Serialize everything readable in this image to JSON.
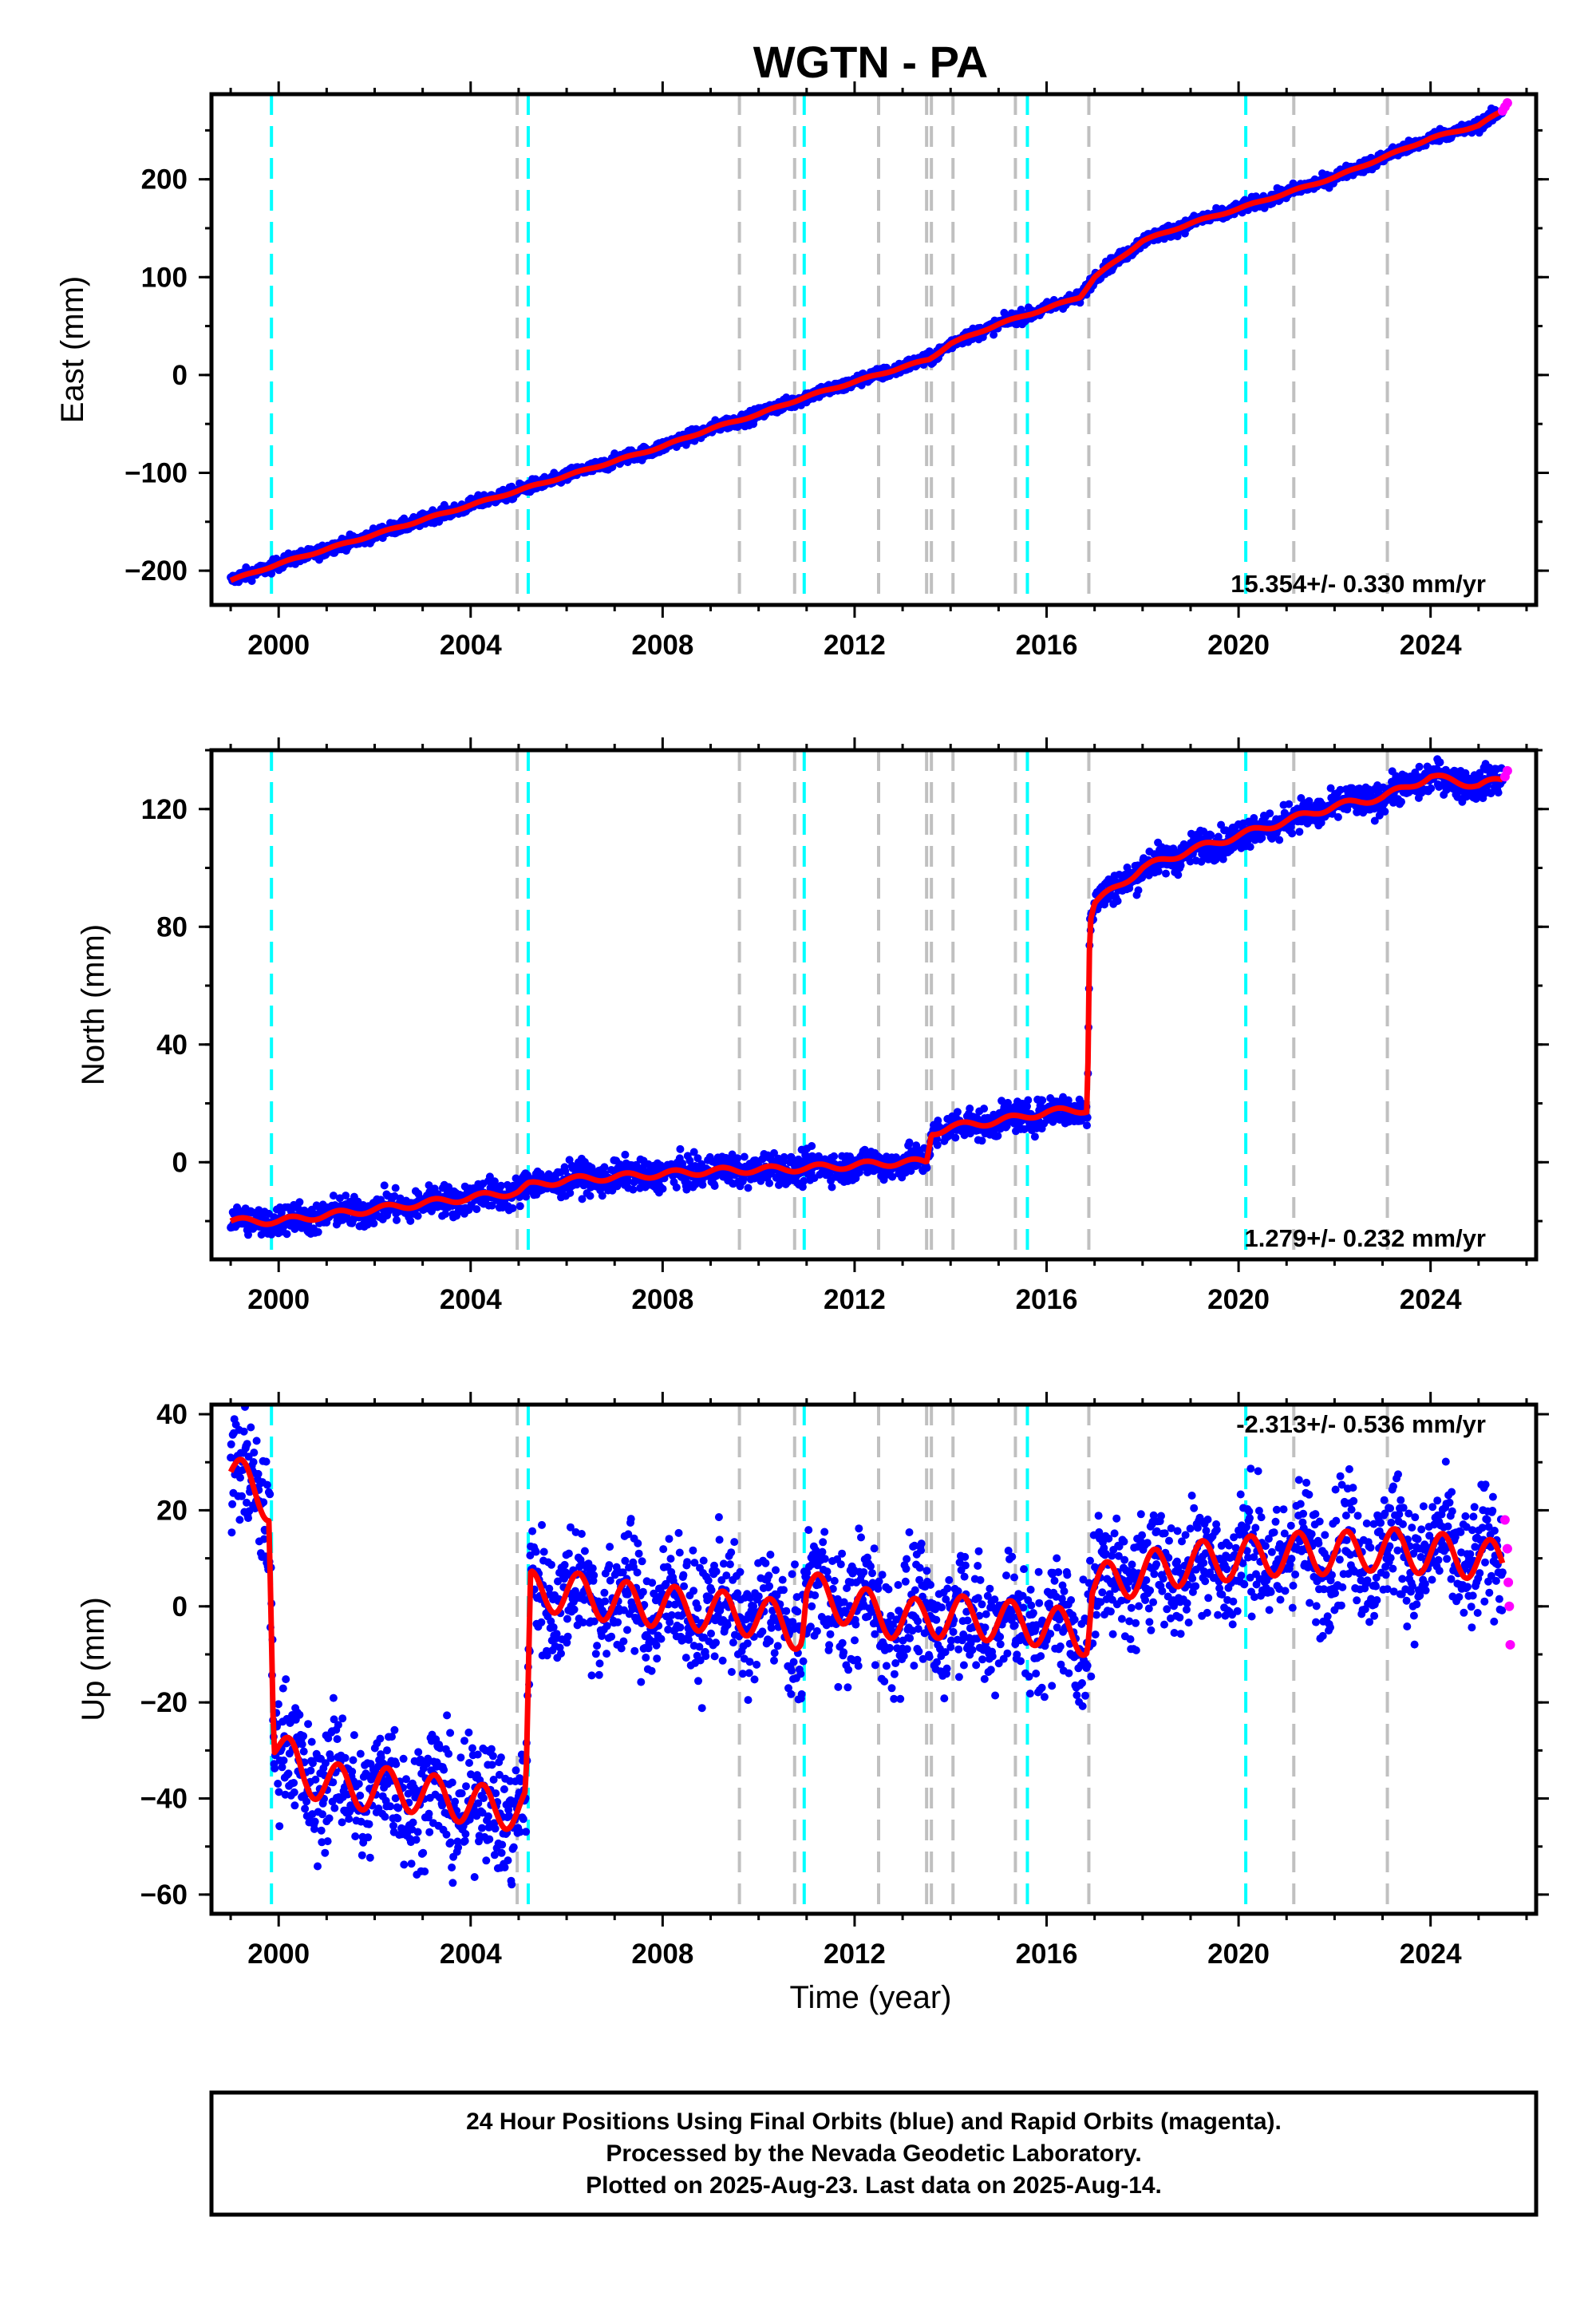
{
  "title": "WGTN - PA",
  "colors": {
    "final": "#0000ff",
    "rapid": "#ff00ff",
    "model": "#ff0000",
    "equipment_change": "#00ffff",
    "earthquake": "#c0c0c0"
  },
  "x_axis": {
    "label": "Time (year)",
    "range": [
      1998.6,
      2026.2
    ],
    "tick_labels": [
      "2000",
      "2004",
      "2008",
      "2012",
      "2016",
      "2020",
      "2024"
    ]
  },
  "events": {
    "equipment_change": [
      1999.85,
      2005.2,
      2010.95,
      2015.6,
      2020.15
    ],
    "earthquake": [
      2004.97,
      2009.6,
      2010.75,
      2012.5,
      2013.5,
      2013.6,
      2014.05,
      2015.35,
      2016.88,
      2021.15,
      2023.1
    ]
  },
  "footer": {
    "line1": "24 Hour Positions Using Final Orbits (blue) and Rapid Orbits (magenta).",
    "line2": "Processed by the Nevada Geodetic Laboratory.",
    "line3": "Plotted on 2025-Aug-23. Last data on 2025-Aug-14."
  },
  "chart_data": [
    {
      "type": "scatter",
      "component": "East",
      "ylabel": "East (mm)",
      "ylim": [
        -235,
        287
      ],
      "yticks": [
        -200,
        -100,
        0,
        100,
        200
      ],
      "ytick_labels": [
        "−200",
        "−100",
        "0",
        "100",
        "200"
      ],
      "velocity_label": "15.354+/- 0.330 mm/yr",
      "velocity_mm_per_yr": 15.354,
      "velocity_sigma": 0.33,
      "series": [
        {
          "name": "Final Orbits (blue)",
          "x": [
            1999.0,
            2000.0,
            2001.0,
            2002.0,
            2003.0,
            2004.0,
            2005.0,
            2006.0,
            2007.0,
            2008.0,
            2009.0,
            2010.0,
            2011.0,
            2012.0,
            2013.0,
            2013.55,
            2014.0,
            2015.0,
            2016.0,
            2016.7,
            2017.0,
            2018.0,
            2019.0,
            2020.0,
            2021.0,
            2022.0,
            2023.0,
            2024.0,
            2025.0,
            2025.5
          ],
          "y": [
            -210,
            -193,
            -178,
            -163,
            -148,
            -133,
            -118,
            -103,
            -88,
            -73,
            -55,
            -40,
            -22,
            -7,
            8,
            16,
            32,
            52,
            68,
            80,
            100,
            137,
            155,
            170,
            186,
            202,
            222,
            242,
            255,
            270
          ]
        },
        {
          "name": "Rapid Orbits (magenta)",
          "x": [
            2025.5,
            2025.55,
            2025.6
          ],
          "y": [
            270,
            274,
            278
          ]
        }
      ]
    },
    {
      "type": "scatter",
      "component": "North",
      "ylabel": "North (mm)",
      "ylim": [
        -33,
        140
      ],
      "yticks": [
        0,
        40,
        80,
        120
      ],
      "ytick_labels": [
        "0",
        "40",
        "80",
        "120"
      ],
      "velocity_label": "1.279+/- 0.232 mm/yr",
      "velocity_mm_per_yr": 1.279,
      "velocity_sigma": 0.232,
      "series": [
        {
          "name": "Final Orbits (blue)",
          "x": [
            1999.0,
            2000.0,
            2001.0,
            2002.0,
            2003.0,
            2004.0,
            2005.0,
            2005.2,
            2006.0,
            2007.0,
            2008.0,
            2009.0,
            2010.0,
            2011.0,
            2012.0,
            2013.0,
            2013.5,
            2013.6,
            2014.0,
            2015.0,
            2016.0,
            2016.85,
            2016.9,
            2017.0,
            2018.0,
            2019.0,
            2020.0,
            2021.0,
            2022.0,
            2023.0,
            2024.0,
            2025.0,
            2025.5
          ],
          "y": [
            -20,
            -20,
            -18,
            -16,
            -14,
            -12,
            -10,
            -8,
            -6,
            -5,
            -4,
            -3,
            -2.5,
            -2,
            -1,
            0,
            0,
            10,
            12,
            14,
            17,
            18,
            82,
            88,
            100,
            106,
            111,
            116,
            121,
            124,
            131,
            128,
            130
          ]
        },
        {
          "name": "Rapid Orbits (magenta)",
          "x": [
            2025.55,
            2025.6
          ],
          "y": [
            131,
            133
          ]
        }
      ]
    },
    {
      "type": "scatter",
      "component": "Up",
      "ylabel": "Up (mm)",
      "ylim": [
        -64,
        42
      ],
      "yticks": [
        -60,
        -40,
        -20,
        0,
        20,
        40
      ],
      "ytick_labels": [
        "−60",
        "−40",
        "−20",
        "0",
        "20",
        "40"
      ],
      "velocity_label": "-2.313+/- 0.536 mm/yr",
      "velocity_mm_per_yr": -2.313,
      "velocity_sigma": 0.536,
      "series": [
        {
          "name": "Final Orbits (blue)",
          "x": [
            1999.0,
            1999.5,
            1999.8,
            1999.9,
            2000.5,
            2001.5,
            2002.5,
            2003.5,
            2004.5,
            2005.15,
            2005.25,
            2006.0,
            2007.0,
            2008.0,
            2009.0,
            2010.0,
            2010.9,
            2011.0,
            2012.0,
            2013.0,
            2014.0,
            2015.0,
            2016.0,
            2016.85,
            2016.95,
            2018.0,
            2019.0,
            2020.0,
            2021.0,
            2022.0,
            2023.0,
            2024.0,
            2025.0,
            2025.5
          ],
          "y": [
            28,
            24,
            22,
            -28,
            -35,
            -38,
            -38,
            -40,
            -42,
            -42,
            3,
            3,
            1,
            0,
            -1,
            -2,
            -5,
            3,
            0,
            -3,
            -2,
            -3,
            -4,
            -6,
            4,
            7,
            9,
            10,
            11,
            11,
            12,
            11,
            10,
            9
          ]
        },
        {
          "name": "Rapid Orbits (magenta)",
          "x": [
            2025.55,
            2025.6,
            2025.62,
            2025.64,
            2025.66
          ],
          "y": [
            18,
            12,
            5,
            0,
            -8
          ]
        }
      ]
    }
  ]
}
